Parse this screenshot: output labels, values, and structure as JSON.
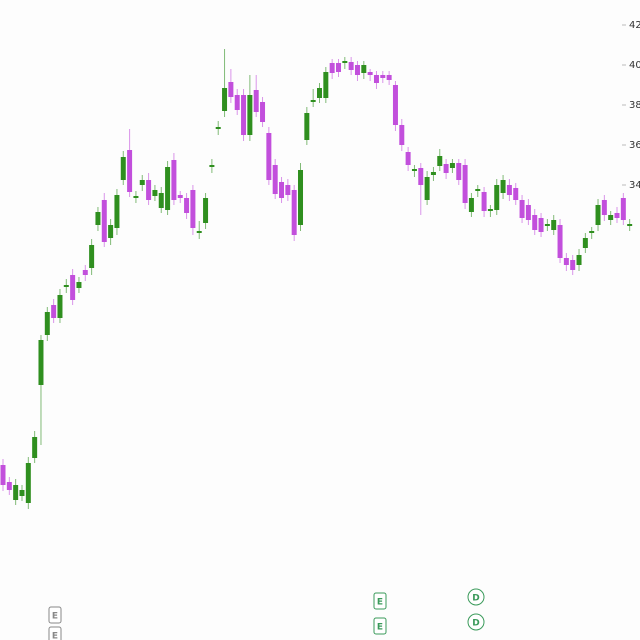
{
  "chart_data": {
    "type": "candlestick",
    "up_color": "#2f8f1f",
    "down_color": "#c24fdc",
    "ylim": [
      11.25,
      43.25
    ],
    "yticks": [
      42,
      40,
      38,
      36,
      34
    ],
    "open": [
      20.0,
      19.15,
      18.25,
      18.45,
      18.1,
      20.35,
      24.0,
      26.5,
      28.0,
      27.35,
      28.9,
      29.5,
      28.85,
      29.75,
      29.85,
      32.0,
      33.25,
      31.35,
      31.85,
      34.25,
      35.75,
      33.35,
      34.0,
      34.25,
      33.45,
      32.85,
      32.75,
      35.25,
      33.5,
      33.35,
      33.75,
      31.6,
      32.1,
      34.9,
      36.8,
      37.7,
      39.15,
      38.5,
      38.5,
      36.5,
      38.75,
      38.15,
      36.6,
      35.0,
      34.15,
      34.0,
      33.75,
      32.0,
      36.25,
      38.15,
      38.35,
      38.35,
      40.1,
      40.1,
      40.1,
      40.15,
      40.0,
      39.6,
      39.65,
      39.5,
      39.5,
      39.5,
      39.0,
      37.0,
      35.65,
      34.7,
      34.85,
      33.25,
      34.5,
      34.95,
      35.05,
      34.85,
      35.1,
      35.0,
      32.65,
      33.7,
      33.65,
      32.7,
      32.75,
      33.6,
      34.0,
      33.85,
      33.25,
      33.0,
      32.5,
      32.35,
      31.95,
      31.75,
      32.0,
      30.35,
      30.25,
      30.0,
      30.85,
      31.6,
      32.0,
      33.25,
      32.25,
      32.6,
      33.35,
      31.95
    ],
    "high": [
      20.3,
      19.4,
      19.3,
      19.0,
      20.4,
      21.7,
      26.5,
      27.9,
      28.3,
      28.8,
      29.3,
      29.8,
      29.4,
      30.0,
      31.3,
      32.9,
      33.6,
      32.3,
      33.8,
      35.7,
      36.8,
      33.7,
      34.5,
      34.6,
      34.0,
      33.9,
      35.2,
      35.6,
      33.7,
      33.6,
      34.0,
      32.2,
      33.6,
      35.3,
      37.2,
      40.8,
      39.8,
      38.8,
      38.8,
      39.5,
      39.5,
      38.4,
      36.9,
      35.3,
      34.4,
      34.3,
      34.0,
      35.1,
      37.9,
      38.8,
      39.1,
      39.9,
      40.3,
      40.3,
      40.4,
      40.4,
      40.2,
      40.2,
      39.8,
      39.7,
      39.7,
      39.7,
      39.2,
      37.3,
      35.9,
      35.0,
      35.1,
      34.7,
      34.9,
      35.8,
      35.3,
      35.3,
      35.3,
      35.3,
      33.6,
      34.0,
      33.9,
      33.0,
      34.3,
      34.5,
      34.3,
      34.1,
      33.5,
      33.3,
      32.8,
      32.6,
      32.3,
      32.5,
      32.3,
      30.6,
      30.5,
      30.8,
      31.6,
      31.9,
      33.3,
      33.5,
      32.7,
      32.9,
      33.6,
      32.3
    ],
    "low": [
      18.7,
      18.5,
      18.0,
      18.2,
      17.8,
      20.1,
      21.0,
      26.2,
      27.1,
      27.1,
      28.6,
      28.0,
      28.6,
      29.2,
      29.5,
      31.7,
      30.9,
      31.0,
      31.5,
      34.0,
      33.4,
      33.1,
      33.7,
      33.0,
      33.2,
      32.6,
      32.5,
      33.0,
      33.1,
      32.3,
      31.5,
      31.3,
      31.8,
      34.6,
      36.5,
      37.4,
      38.1,
      37.5,
      36.2,
      36.2,
      37.4,
      36.9,
      34.0,
      33.3,
      33.1,
      33.2,
      31.2,
      31.7,
      36.0,
      37.9,
      38.1,
      38.1,
      39.3,
      39.4,
      39.8,
      39.5,
      39.2,
      39.3,
      39.2,
      38.8,
      39.1,
      39.0,
      36.7,
      35.7,
      34.7,
      34.4,
      32.5,
      33.0,
      34.2,
      34.7,
      34.3,
      34.6,
      34.0,
      32.8,
      32.4,
      33.4,
      32.4,
      32.4,
      32.5,
      33.3,
      33.2,
      33.0,
      32.1,
      32.0,
      31.5,
      31.4,
      31.7,
      31.5,
      30.1,
      29.7,
      29.5,
      29.7,
      30.6,
      31.3,
      31.7,
      32.2,
      32.0,
      32.1,
      32.0,
      31.7
    ],
    "close": [
      19.0,
      18.75,
      19.0,
      18.75,
      20.1,
      21.4,
      26.25,
      27.65,
      27.35,
      28.5,
      29.0,
      28.25,
      29.15,
      29.5,
      31.0,
      32.65,
      31.15,
      32.0,
      33.5,
      35.4,
      33.65,
      33.45,
      34.25,
      33.25,
      33.75,
      33.6,
      34.9,
      33.25,
      33.35,
      32.6,
      31.85,
      31.7,
      33.35,
      35.0,
      36.9,
      38.85,
      38.4,
      37.75,
      36.5,
      38.5,
      37.65,
      37.15,
      34.25,
      33.55,
      33.35,
      33.5,
      31.5,
      34.75,
      37.6,
      38.25,
      38.85,
      39.65,
      39.6,
      39.65,
      40.2,
      39.75,
      39.5,
      40.0,
      39.5,
      39.1,
      39.35,
      39.25,
      37.0,
      36.0,
      35.0,
      34.8,
      34.0,
      34.4,
      34.65,
      35.45,
      34.6,
      35.1,
      34.25,
      33.1,
      33.35,
      33.8,
      32.7,
      32.8,
      34.0,
      34.25,
      33.5,
      33.25,
      32.35,
      32.25,
      31.75,
      31.65,
      32.05,
      32.25,
      30.35,
      30.0,
      29.75,
      30.5,
      31.35,
      31.7,
      33.0,
      32.5,
      32.5,
      32.35,
      32.25,
      32.05
    ],
    "events": [
      "E",
      "E",
      "E",
      "E",
      "D",
      "D"
    ]
  }
}
